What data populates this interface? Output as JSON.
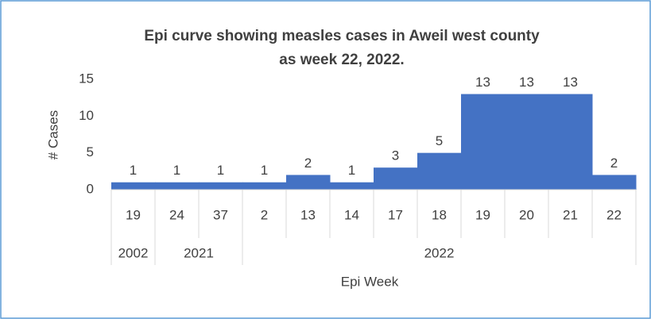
{
  "chart_data": {
    "type": "bar",
    "title": [
      "Epi curve showing measles cases in Aweil west county",
      "as week 22, 2022."
    ],
    "categories": [
      "19",
      "24",
      "37",
      "2",
      "13",
      "14",
      "17",
      "18",
      "19",
      "20",
      "21",
      "22"
    ],
    "category_groups": [
      "2002",
      "2021",
      "2021",
      "2022",
      "2022",
      "2022",
      "2022",
      "2022",
      "2022",
      "2022",
      "2022",
      "2022"
    ],
    "values": [
      1,
      1,
      1,
      1,
      2,
      1,
      3,
      5,
      13,
      13,
      13,
      2
    ],
    "color": "#4472c4",
    "ylim": [
      0,
      15
    ],
    "yticks": [
      0,
      5,
      10,
      15
    ],
    "y_label": "# Cases",
    "x_label": "Epi Week",
    "grid": false
  }
}
